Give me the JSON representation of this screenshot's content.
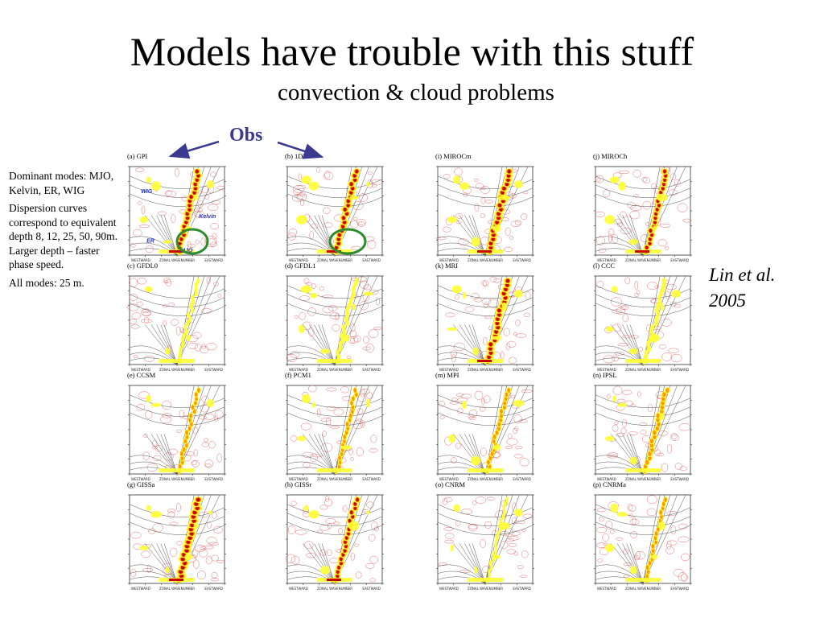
{
  "slide": {
    "title": "Models have trouble with this stuff",
    "subtitle": "convection & cloud problems",
    "obs_label": "Obs",
    "citation_lines": [
      "Lin et al.",
      "2005"
    ],
    "notes": [
      "Dominant modes: MJO, Kelvin, ER, WIG",
      "Dispersion curves correspond to equivalent depth 8, 12, 25, 50, 90m. Larger depth – faster phase speed.",
      "All modes: 25 m."
    ]
  },
  "mode_labels": [
    "WIG",
    "Kelvin",
    "ER",
    "MJO"
  ],
  "colors": {
    "obs_label": "#3a3a90",
    "arrow": "#3a3a90",
    "highlight_ring": "#2e8b2e",
    "power_low": "#ffff33",
    "power_mid": "#ff9900",
    "power_high": "#cc0000",
    "contour": "#e06060"
  },
  "axis_text": {
    "left": "WESTWARD",
    "center": "ZONAL WAVENUMBER",
    "right": "EASTWARD"
  },
  "panels": [
    {
      "label": "(a) GPI"
    },
    {
      "label": "(b) 1DD"
    },
    {
      "label": "(i) MIROCm"
    },
    {
      "label": "(j) MIROCh"
    },
    {
      "label": "(c) GFDL0"
    },
    {
      "label": "(d) GFDL1"
    },
    {
      "label": "(k) MRI"
    },
    {
      "label": "(l) CCC"
    },
    {
      "label": "(e) CCSM"
    },
    {
      "label": "(f) PCM1"
    },
    {
      "label": "(m) MPI"
    },
    {
      "label": "(n) IPSL"
    },
    {
      "label": "(g) GISSa"
    },
    {
      "label": "(h) GISSr"
    },
    {
      "label": "(o) CNRM"
    },
    {
      "label": "(p) CNRMa"
    }
  ]
}
